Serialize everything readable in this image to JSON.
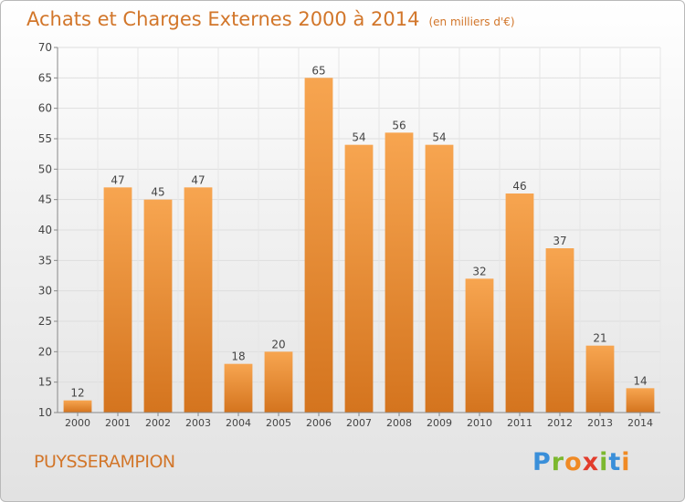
{
  "title": "Achats et Charges Externes 2000 à 2014",
  "subtitle": "(en milliers d'€)",
  "commune": "PUYSSERAMPION",
  "logo": {
    "letters": [
      {
        "char": "P",
        "color": "#3a8fd9"
      },
      {
        "char": "r",
        "color": "#7cb82f"
      },
      {
        "char": "o",
        "color": "#f08a24"
      },
      {
        "char": "x",
        "color": "#e23c2c"
      },
      {
        "char": "i",
        "color": "#7cb82f"
      },
      {
        "char": "t",
        "color": "#3a8fd9"
      },
      {
        "char": "i",
        "color": "#f08a24"
      }
    ]
  },
  "chart_data": {
    "type": "bar",
    "categories": [
      "2000",
      "2001",
      "2002",
      "2003",
      "2004",
      "2005",
      "2006",
      "2007",
      "2008",
      "2009",
      "2010",
      "2011",
      "2012",
      "2013",
      "2014"
    ],
    "values": [
      12,
      47,
      45,
      47,
      18,
      20,
      65,
      54,
      56,
      54,
      32,
      46,
      37,
      21,
      14
    ],
    "data_labels": [
      "12",
      "47",
      "45",
      "47",
      "18",
      "20",
      "65",
      "54",
      "56",
      "54",
      "32",
      "46",
      "37",
      "21",
      "14"
    ],
    "y_ticks": [
      "10",
      "15",
      "20",
      "25",
      "30",
      "35",
      "40",
      "45",
      "50",
      "55",
      "60",
      "65",
      "70"
    ],
    "ylim": [
      10,
      70
    ],
    "grid": true,
    "bar_color_top": "#f7a550",
    "bar_color_bottom": "#d4741e",
    "title": "Achats et Charges Externes 2000 à 2014",
    "xlabel": "",
    "ylabel": ""
  }
}
